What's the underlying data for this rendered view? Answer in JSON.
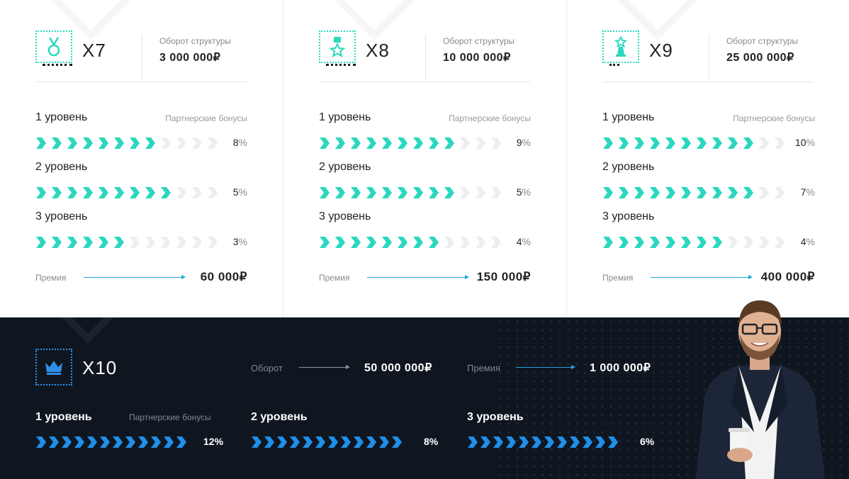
{
  "tiers": [
    {
      "name": "X7",
      "icon": "medal-icon",
      "turnover_label": "Оборот структуры",
      "turnover": "3 000 000₽",
      "bonus_header": "Партнерские бонусы",
      "levels": [
        {
          "label": "1 уровень",
          "filled": 8,
          "percent": "8",
          "sign": "%"
        },
        {
          "label": "2 уровень",
          "filled": 9,
          "percent": "5",
          "sign": "%"
        },
        {
          "label": "3 уровень",
          "filled": 6,
          "percent": "3",
          "sign": "%"
        }
      ],
      "premium_label": "Премия",
      "premium": "60 000₽"
    },
    {
      "name": "X8",
      "icon": "order-star-icon",
      "turnover_label": "Оборот структуры",
      "turnover": "10 000 000₽",
      "bonus_header": "Партнерские бонусы",
      "levels": [
        {
          "label": "1 уровень",
          "filled": 9,
          "percent": "9",
          "sign": "%"
        },
        {
          "label": "2 уровень",
          "filled": 9,
          "percent": "5",
          "sign": "%"
        },
        {
          "label": "3 уровень",
          "filled": 8,
          "percent": "4",
          "sign": "%"
        }
      ],
      "premium_label": "Премия",
      "premium": "150 000₽"
    },
    {
      "name": "X9",
      "icon": "trophy-icon",
      "turnover_label": "Оборот структуры",
      "turnover": "25 000 000₽",
      "bonus_header": "Партнерские бонусы",
      "levels": [
        {
          "label": "1 уровень",
          "filled": 10,
          "percent": "10",
          "sign": "%"
        },
        {
          "label": "2 уровень",
          "filled": 10,
          "percent": "7",
          "sign": "%"
        },
        {
          "label": "3 уровень",
          "filled": 8,
          "percent": "4",
          "sign": "%"
        }
      ],
      "premium_label": "Премия",
      "premium": "400 000₽"
    }
  ],
  "top_tier": {
    "name": "X10",
    "icon": "crown-icon",
    "turnover_label": "Оборот",
    "turnover": "50 000 000₽",
    "premium_label": "Премия",
    "premium": "1 000 000₽",
    "bonus_header": "Партнерские бонусы",
    "levels": [
      {
        "label": "1 уровень",
        "filled": 12,
        "percent": "12%"
      },
      {
        "label": "2 уровень",
        "filled": 12,
        "percent": "8%"
      },
      {
        "label": "3 уровень",
        "filled": 12,
        "percent": "6%"
      }
    ]
  },
  "colors": {
    "teal": "#2ad8bd",
    "empty_arrow": "#eeeeee",
    "blue_arrow": "#1f8fe8",
    "dark_bg": "#0f1620"
  },
  "total_arrows": 12
}
